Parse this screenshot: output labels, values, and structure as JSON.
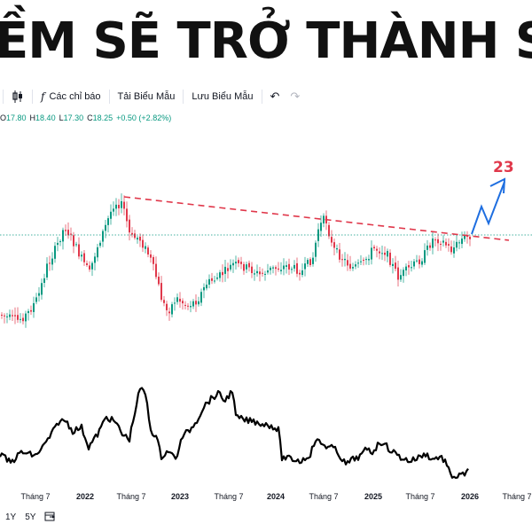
{
  "banner": {
    "title": "ỀM SẼ TRỞ THÀNH SIÊU C"
  },
  "toolbar": {
    "indicators_label": "Các chỉ báo",
    "load_template_label": "Tải Biểu Mẫu",
    "save_template_label": "Lưu Biểu Mẫu",
    "icons": [
      "candlestick-icon",
      "indicator-fx-icon",
      "undo-icon",
      "redo-icon"
    ]
  },
  "ohlc": {
    "open_key": "O",
    "open": "17.80",
    "high_key": "H",
    "high": "18.40",
    "low_key": "L",
    "low": "17.30",
    "close_key": "C",
    "close": "18.25",
    "change": "+0.50 (+2.82%)"
  },
  "chart_data": {
    "type": "candlestick",
    "target_label": "23",
    "current_price": 18.25,
    "x_ticks": [
      "Tháng 7",
      "2022",
      "Tháng 7",
      "2023",
      "Tháng 7",
      "2024",
      "Tháng 7",
      "2025",
      "Tháng 7",
      "2026",
      "Tháng 7"
    ],
    "colors": {
      "up": "#089981",
      "down": "#e0384b",
      "trendline": "#e0384b",
      "projection": "#1e6ee0",
      "oscillator": "#000000",
      "price_line": "#089981"
    }
  },
  "bottom": {
    "range_1y": "1Y",
    "range_5y": "5Y",
    "icons": [
      "date-range-icon"
    ]
  }
}
